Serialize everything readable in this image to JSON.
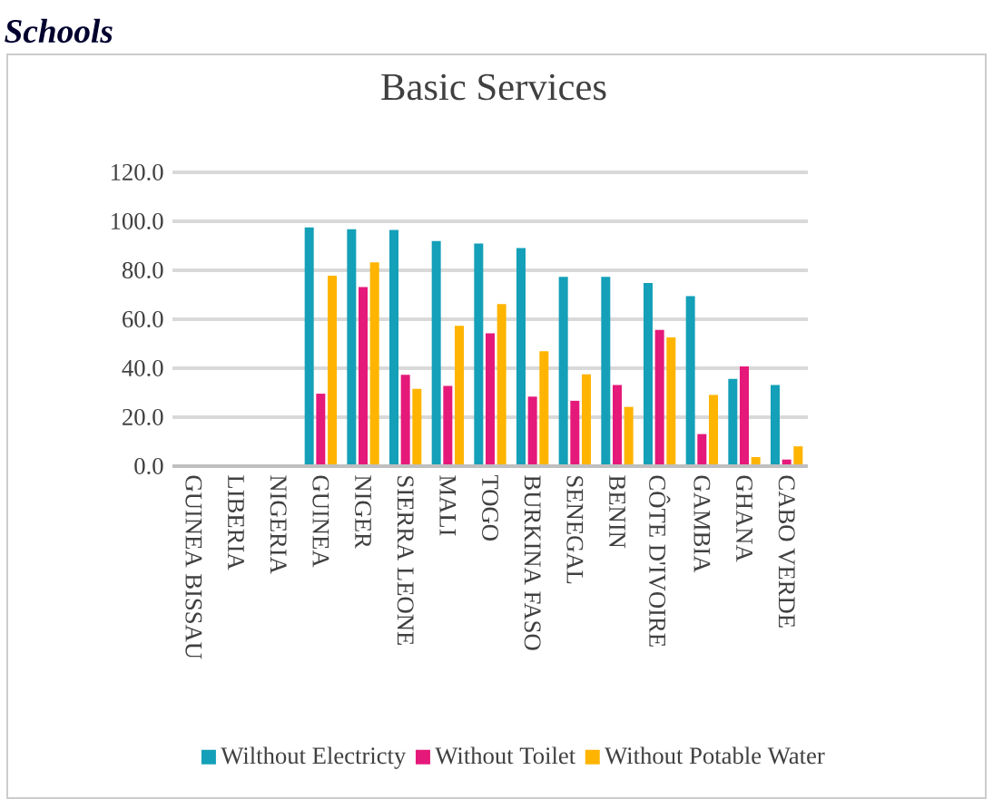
{
  "chart_data": {
    "type": "bar",
    "title": "Basic Services",
    "annotations": [
      "Schools"
    ],
    "categories": [
      "GUINEA BISSAU",
      "LIBERIA",
      "NIGERIA",
      "GUINEA",
      "NIGER",
      "SIERRA LEONE",
      "MALI",
      "TOGO",
      "BURKINA FASO",
      "SENEGAL",
      "BENIN",
      "CÔTE D'IVOIRE",
      "GAMBIA",
      "GHANA",
      "CABO VERDE"
    ],
    "series": [
      {
        "name": "Wilthout Electricty",
        "color": "#14a0b8",
        "values": [
          null,
          null,
          null,
          97.5,
          96.8,
          96.5,
          91.9,
          90.9,
          89.1,
          77.3,
          77.3,
          74.8,
          69.4,
          35.6,
          33.1
        ]
      },
      {
        "name": "Without Toilet",
        "color": "#e5197a",
        "values": [
          null,
          null,
          null,
          29.6,
          73.1,
          37.3,
          32.8,
          54.3,
          28.4,
          26.7,
          33.1,
          55.6,
          13.1,
          40.7,
          2.7
        ]
      },
      {
        "name": "Without Potable Water",
        "color": "#ffb400",
        "values": [
          null,
          null,
          null,
          77.8,
          83.2,
          31.6,
          57.3,
          66.2,
          46.9,
          37.5,
          24.2,
          52.6,
          29.1,
          3.7,
          8.1
        ]
      }
    ],
    "ylim": [
      0,
      120
    ],
    "yticks": [
      {
        "value": 0,
        "label": "0.0"
      },
      {
        "value": 20,
        "label": "20.0"
      },
      {
        "value": 40,
        "label": "40.0"
      },
      {
        "value": 60,
        "label": "60.0"
      },
      {
        "value": 80,
        "label": "80.0"
      },
      {
        "value": 100,
        "label": "100.0"
      },
      {
        "value": 120,
        "label": "120.0"
      }
    ],
    "grid": "y",
    "legend": "bottom"
  }
}
